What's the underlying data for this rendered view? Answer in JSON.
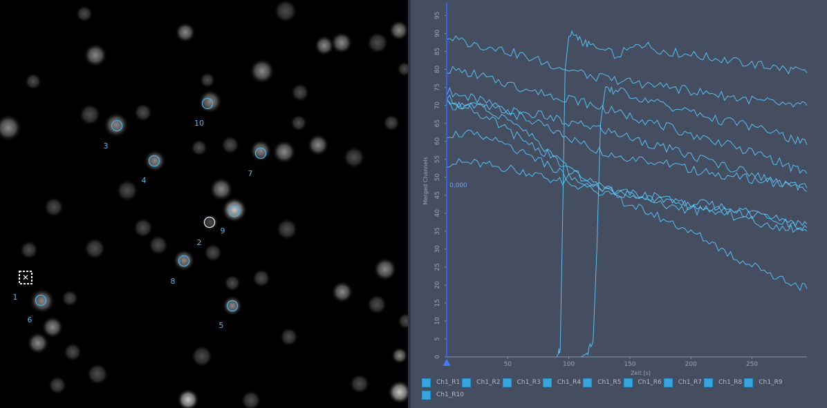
{
  "viewer": {
    "roi_labels": [
      "1",
      "2",
      "3",
      "4",
      "5",
      "6",
      "7",
      "8",
      "9",
      "10"
    ]
  },
  "chart_data": {
    "type": "line",
    "title": "",
    "xlabel": "Zeit [s]",
    "ylabel": "Merged Channels",
    "xlim": [
      0,
      295
    ],
    "ylim": [
      0,
      97
    ],
    "xticks": [
      "50",
      "100",
      "150",
      "200",
      "250"
    ],
    "yticks": [
      "0",
      "5",
      "10",
      "15",
      "20",
      "25",
      "30",
      "35",
      "40",
      "45",
      "50",
      "55",
      "60",
      "65",
      "70",
      "75",
      "80",
      "85",
      "90",
      "95"
    ],
    "cursor_value": "0,000",
    "series": [
      {
        "name": "Ch1_R1",
        "x": [
          0,
          20,
          40,
          60,
          80,
          100,
          120,
          140,
          160,
          180,
          200,
          220,
          240,
          260,
          280,
          295
        ],
        "y": [
          74,
          72,
          70,
          67,
          64,
          61,
          58,
          56,
          55,
          54,
          52,
          51,
          50,
          49,
          48,
          47
        ]
      },
      {
        "name": "Ch1_R2",
        "x": [
          0,
          20,
          40,
          60,
          80,
          90,
          93,
          95,
          97,
          100,
          110,
          120,
          140,
          160,
          180,
          200,
          220,
          240,
          260,
          280,
          295
        ],
        "y": [
          0,
          0,
          0,
          0,
          0,
          0,
          2,
          40,
          80,
          90,
          88,
          86,
          84,
          87,
          85,
          84,
          83,
          82,
          81,
          80,
          79
        ]
      },
      {
        "name": "Ch1_R3",
        "x": [
          0,
          20,
          40,
          60,
          80,
          100,
          120,
          140,
          160,
          180,
          200,
          220,
          240,
          260,
          280,
          295
        ],
        "y": [
          54,
          54,
          53,
          52,
          50,
          48,
          47,
          46,
          45,
          44,
          43,
          42,
          41,
          40,
          38,
          37
        ]
      },
      {
        "name": "Ch1_R4",
        "x": [
          0,
          20,
          40,
          60,
          80,
          100,
          120,
          140,
          160,
          180,
          200,
          220,
          240,
          260,
          280,
          295
        ],
        "y": [
          89,
          87,
          86,
          84,
          82,
          80,
          78,
          77,
          76,
          75,
          74,
          73,
          72,
          71,
          70,
          70
        ]
      },
      {
        "name": "Ch1_R5",
        "x": [
          0,
          20,
          40,
          60,
          80,
          100,
          110,
          115,
          120,
          123,
          126,
          130,
          140,
          160,
          180,
          200,
          220,
          240,
          260,
          280,
          295
        ],
        "y": [
          0,
          0,
          0,
          0,
          0,
          0,
          0,
          1,
          5,
          30,
          65,
          74,
          74,
          72,
          70,
          68,
          66,
          65,
          63,
          61,
          59
        ]
      },
      {
        "name": "Ch1_R6",
        "x": [
          0,
          20,
          40,
          60,
          80,
          100,
          120,
          140,
          160,
          180,
          200,
          220,
          240,
          260,
          280,
          295
        ],
        "y": [
          62,
          62,
          60,
          57,
          54,
          50,
          47,
          44,
          41,
          38,
          35,
          31,
          27,
          24,
          21,
          19
        ]
      },
      {
        "name": "Ch1_R7",
        "x": [
          0,
          20,
          40,
          60,
          80,
          100,
          120,
          140,
          160,
          180,
          200,
          220,
          240,
          260,
          280,
          295
        ],
        "y": [
          70,
          70,
          69,
          68,
          67,
          65,
          64,
          62,
          60,
          58,
          56,
          54,
          52,
          50,
          48,
          46
        ]
      },
      {
        "name": "Ch1_R8",
        "x": [
          0,
          20,
          40,
          60,
          80,
          100,
          120,
          140,
          160,
          180,
          200,
          220,
          240,
          260,
          280,
          295
        ],
        "y": [
          80,
          79,
          77,
          75,
          73,
          72,
          70,
          68,
          66,
          64,
          62,
          60,
          58,
          56,
          53,
          51
        ]
      },
      {
        "name": "Ch1_R9",
        "x": [
          0,
          20,
          40,
          60,
          80,
          100,
          120,
          140,
          160,
          180,
          200,
          220,
          240,
          260,
          280,
          295
        ],
        "y": [
          72,
          69,
          65,
          61,
          57,
          52,
          48,
          46,
          45,
          43,
          42,
          41,
          40,
          39,
          37,
          36
        ]
      },
      {
        "name": "Ch1_R10",
        "x": [
          0,
          20,
          40,
          60,
          80,
          100,
          120,
          140,
          160,
          180,
          200,
          220,
          240,
          260,
          280,
          295
        ],
        "y": [
          71,
          70,
          68,
          64,
          58,
          52,
          48,
          46,
          44,
          42,
          41,
          40,
          39,
          37,
          36,
          35
        ]
      }
    ]
  }
}
